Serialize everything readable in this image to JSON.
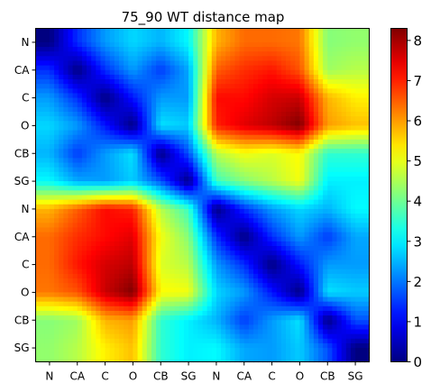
{
  "chart_data": {
    "type": "heatmap",
    "title": "75_90 WT distance map",
    "xlabel": "",
    "ylabel": "",
    "x_tick_labels": [
      "N",
      "CA",
      "C",
      "O",
      "CB",
      "SG",
      "N",
      "CA",
      "C",
      "O",
      "CB",
      "SG"
    ],
    "y_tick_labels": [
      "N",
      "CA",
      "C",
      "O",
      "CB",
      "SG",
      "N",
      "CA",
      "C",
      "O",
      "CB",
      "SG"
    ],
    "colormap": "jet",
    "interpolation": "smooth",
    "vmin": 0,
    "vmax": 8.3,
    "colorbar": {
      "ticks": [
        0,
        1,
        2,
        3,
        4,
        5,
        6,
        7,
        8
      ],
      "tick_labels": [
        "0",
        "1",
        "2",
        "3",
        "4",
        "5",
        "6",
        "7",
        "8"
      ]
    },
    "grid": false,
    "matrix": [
      [
        0.0,
        1.4,
        2.3,
        2.8,
        2.5,
        3.1,
        5.8,
        6.4,
        6.4,
        6.3,
        4.2,
        4.3
      ],
      [
        1.4,
        0.0,
        1.4,
        2.3,
        1.5,
        2.4,
        6.5,
        6.9,
        7.1,
        6.6,
        4.4,
        4.6
      ],
      [
        2.3,
        1.4,
        0.0,
        1.2,
        2.3,
        2.3,
        7.2,
        7.2,
        7.6,
        7.7,
        5.8,
        5.3
      ],
      [
        2.8,
        2.3,
        1.2,
        0.0,
        2.9,
        2.7,
        7.0,
        7.5,
        7.8,
        8.3,
        6.0,
        5.7
      ],
      [
        2.5,
        1.5,
        2.3,
        2.9,
        0.0,
        1.7,
        4.6,
        5.1,
        4.9,
        5.2,
        3.5,
        3.5
      ],
      [
        3.1,
        2.4,
        2.3,
        2.7,
        1.7,
        0.0,
        3.6,
        4.2,
        4.6,
        5.1,
        3.0,
        3.0
      ],
      [
        5.8,
        6.5,
        7.2,
        7.0,
        4.6,
        3.6,
        0.0,
        1.4,
        2.3,
        2.8,
        2.5,
        3.1
      ],
      [
        6.4,
        6.9,
        7.2,
        7.5,
        5.1,
        4.2,
        1.4,
        0.0,
        1.4,
        2.3,
        1.5,
        2.4
      ],
      [
        6.4,
        7.1,
        7.6,
        7.8,
        4.9,
        4.6,
        2.3,
        1.4,
        0.0,
        1.2,
        2.3,
        2.3
      ],
      [
        6.3,
        6.6,
        7.7,
        8.3,
        5.2,
        5.1,
        2.8,
        2.3,
        1.2,
        0.0,
        2.9,
        2.7
      ],
      [
        4.2,
        4.4,
        5.8,
        6.0,
        3.5,
        3.0,
        2.5,
        1.5,
        2.3,
        2.9,
        0.0,
        1.7
      ],
      [
        4.3,
        4.6,
        5.3,
        5.7,
        3.5,
        3.0,
        3.1,
        2.4,
        2.3,
        2.7,
        1.7,
        0.0
      ]
    ]
  }
}
